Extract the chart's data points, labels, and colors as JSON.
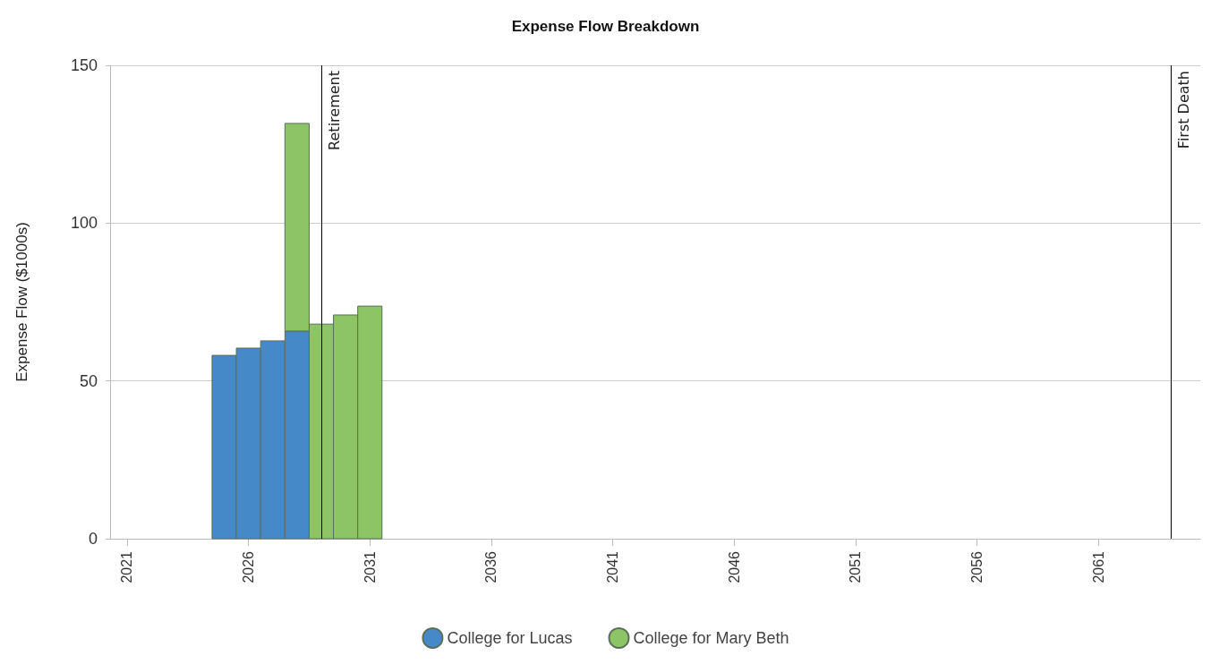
{
  "chart_data": {
    "type": "bar",
    "title": "Expense Flow Breakdown",
    "ylabel": "Expense Flow ($1000s)",
    "x": [
      2025,
      2026,
      2027,
      2028,
      2029,
      2030,
      2031
    ],
    "series": [
      {
        "name": "College for Lucas",
        "color": "#4589c8",
        "values": [
          58.1,
          60.4,
          62.7,
          65.8,
          null,
          null,
          null
        ]
      },
      {
        "name": "College for Mary Beth",
        "color": "#8dc465",
        "values": [
          null,
          null,
          null,
          65.8,
          68.0,
          70.9,
          73.7
        ]
      }
    ],
    "stacked": true,
    "xlim": [
      2020.3,
      2065.2
    ],
    "xticks": [
      2021,
      2026,
      2031,
      2036,
      2041,
      2046,
      2051,
      2056,
      2061
    ],
    "ylim": [
      0,
      150
    ],
    "yticks": [
      0,
      50,
      100,
      150
    ],
    "ref_lines": [
      {
        "axis": "x",
        "value": 2029,
        "label": "Retirement",
        "color": "#000000"
      },
      {
        "axis": "x",
        "value": 2064,
        "label": "First Death",
        "color": "#000000"
      }
    ],
    "grid": "y",
    "legend": "bottom"
  }
}
